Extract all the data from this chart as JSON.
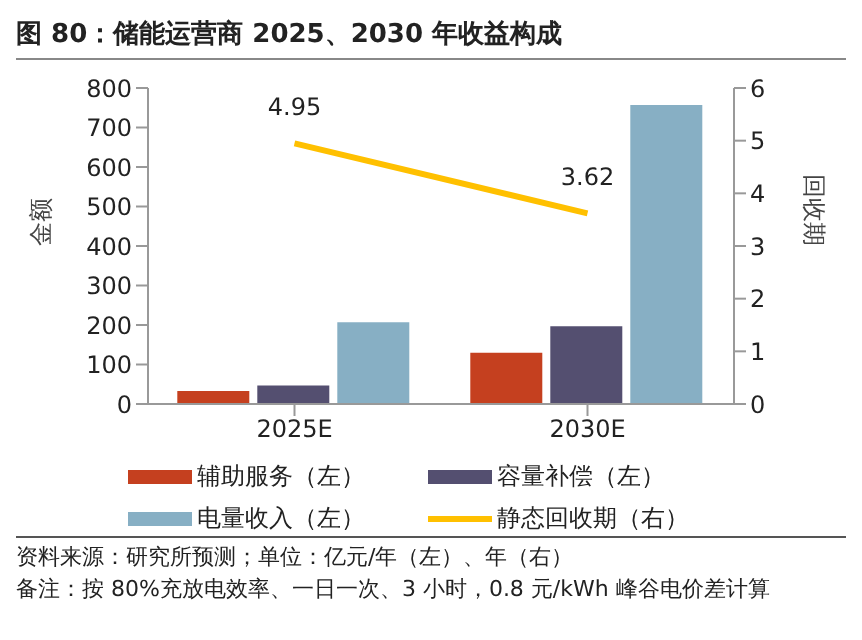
{
  "chart_data": {
    "type": "bar",
    "title": "图 80：储能运营商 2025、2030 年收益构成",
    "ylabel": "金额",
    "y2label": "回收期",
    "categories": [
      "2025E",
      "2030E"
    ],
    "series": [
      {
        "name": "辅助服务（左）",
        "color": "#c5401f",
        "values": [
          33,
          130
        ]
      },
      {
        "name": "容量补偿（左）",
        "color": "#544f70",
        "values": [
          47,
          197
        ]
      },
      {
        "name": "电量收入（左）",
        "color": "#87afc4",
        "values": [
          207,
          757
        ]
      },
      {
        "name": "静态回收期（右）",
        "type": "line",
        "axis": "y2",
        "color": "#ffc000",
        "values": [
          4.95,
          3.62
        ],
        "value_labels": [
          "4.95",
          "3.62"
        ],
        "marker": "none"
      }
    ],
    "ylim": [
      0,
      800
    ],
    "yticks": [
      0,
      100,
      200,
      300,
      400,
      500,
      600,
      700,
      800
    ],
    "y2lim": [
      0,
      6
    ],
    "y2ticks": [
      0,
      1,
      2,
      3,
      4,
      5,
      6
    ],
    "grid": false,
    "legend": "bottom",
    "annotations": [
      "资料来源：研究所预测；单位：亿元/年（左）、年（右）",
      "备注：按 80%充放电效率、一日一次、3 小时，0.8 元/kWh 峰谷电价差计算"
    ]
  }
}
